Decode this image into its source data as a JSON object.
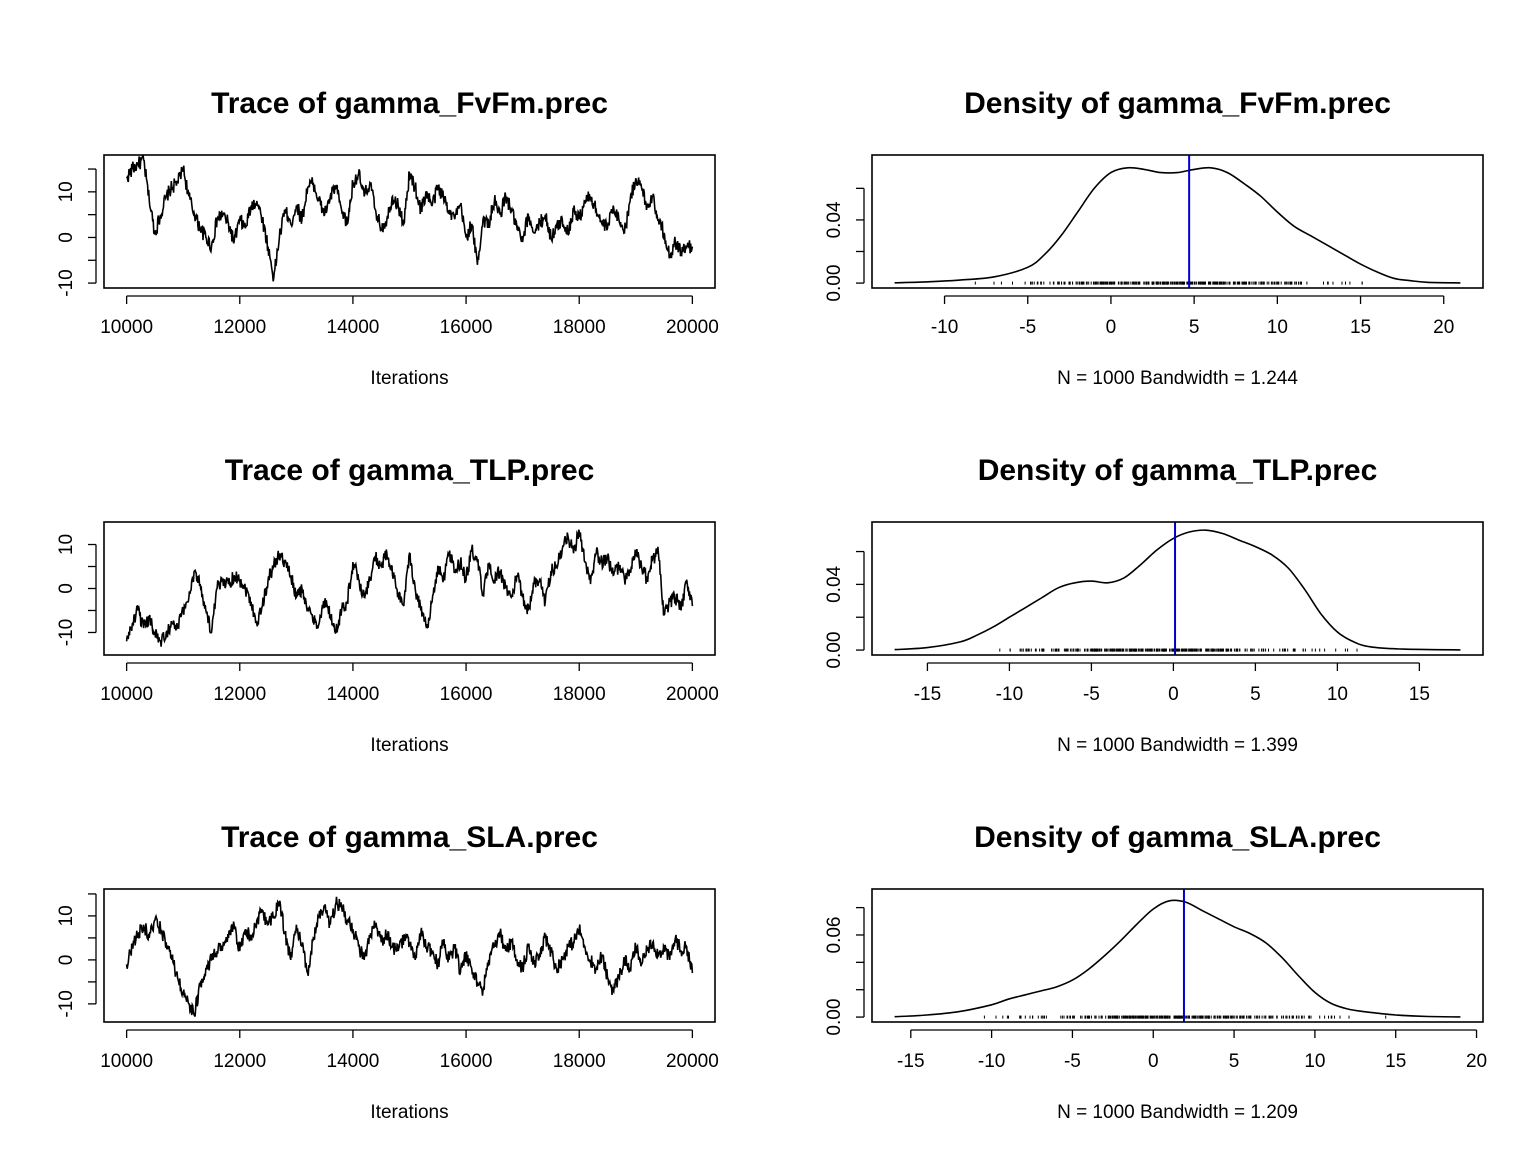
{
  "chart_data": [
    {
      "type": "line",
      "kind": "trace",
      "title": "Trace of gamma_FvFm.prec",
      "xlabel": "Iterations",
      "xlim": [
        10000,
        20000
      ],
      "ylim": [
        -10,
        17
      ],
      "xticks": [
        10000,
        12000,
        14000,
        16000,
        18000,
        20000
      ],
      "yticks": [
        -10,
        0,
        10
      ],
      "yminor": [
        -10,
        -5,
        0,
        5,
        10,
        15
      ],
      "x": [
        10000,
        10100,
        10200,
        10300,
        10400,
        10500,
        10600,
        10700,
        10800,
        10900,
        11000,
        11100,
        11200,
        11300,
        11400,
        11500,
        11600,
        11700,
        11800,
        11900,
        12000,
        12100,
        12200,
        12300,
        12400,
        12500,
        12600,
        12700,
        12800,
        12900,
        13000,
        13100,
        13200,
        13300,
        13400,
        13500,
        13600,
        13700,
        13800,
        13900,
        14000,
        14100,
        14200,
        14300,
        14400,
        14500,
        14600,
        14700,
        14800,
        14900,
        15000,
        15100,
        15200,
        15300,
        15400,
        15500,
        15600,
        15700,
        15800,
        15900,
        16000,
        16100,
        16200,
        16300,
        16400,
        16500,
        16600,
        16700,
        16800,
        16900,
        17000,
        17100,
        17200,
        17300,
        17400,
        17500,
        17600,
        17700,
        17800,
        17900,
        18000,
        18100,
        18200,
        18300,
        18400,
        18500,
        18600,
        18700,
        18800,
        18900,
        19000,
        19100,
        19200,
        19300,
        19400,
        19500,
        19600,
        19700,
        19800,
        19900,
        20000
      ],
      "y": [
        13,
        15,
        16,
        17,
        8,
        1,
        5,
        9,
        11,
        12,
        15,
        9,
        5,
        2,
        0,
        -2,
        4,
        5,
        3,
        -1,
        4,
        2,
        7,
        8,
        4,
        -2,
        -9,
        0,
        6,
        3,
        7,
        4,
        11,
        12,
        8,
        5,
        9,
        11,
        6,
        3,
        12,
        14,
        9,
        12,
        6,
        2,
        4,
        9,
        7,
        3,
        14,
        11,
        6,
        10,
        7,
        11,
        9,
        6,
        4,
        7,
        0,
        3,
        -6,
        4,
        3,
        8,
        5,
        9,
        6,
        2,
        -1,
        5,
        1,
        3,
        5,
        0,
        2,
        4,
        1,
        6,
        4,
        8,
        9,
        6,
        3,
        2,
        7,
        4,
        1,
        8,
        13,
        11,
        7,
        9,
        4,
        1,
        -4,
        -1,
        -3,
        -2,
        -2
      ]
    },
    {
      "type": "area",
      "kind": "density",
      "title": "Density of gamma_FvFm.prec",
      "xlabel": "N = 1000   Bandwidth = 1.244",
      "xlim": [
        -13,
        21
      ],
      "ylim": [
        0,
        0.078
      ],
      "xticks": [
        -10,
        -5,
        0,
        5,
        10,
        15,
        20
      ],
      "yticks": [
        0,
        0.04
      ],
      "ytick_labels": [
        "0.00",
        "0.04"
      ],
      "yminor": [
        0,
        0.02,
        0.04,
        0.06
      ],
      "mean_line": 4.7,
      "rug_range": [
        -9.5,
        17.5
      ],
      "x": [
        -13,
        -11,
        -9,
        -7,
        -5,
        -4,
        -3,
        -2,
        -1,
        0,
        1,
        2,
        3,
        4,
        5,
        6,
        7,
        8,
        9,
        10,
        11,
        12,
        13,
        14,
        15,
        16,
        17,
        18,
        19,
        21
      ],
      "y": [
        0.0002,
        0.0008,
        0.002,
        0.004,
        0.01,
        0.018,
        0.03,
        0.045,
        0.06,
        0.07,
        0.073,
        0.072,
        0.07,
        0.07,
        0.072,
        0.073,
        0.07,
        0.063,
        0.055,
        0.045,
        0.036,
        0.03,
        0.024,
        0.018,
        0.012,
        0.007,
        0.003,
        0.0015,
        0.0005,
        0.0001
      ]
    },
    {
      "type": "line",
      "kind": "trace",
      "title": "Trace of gamma_TLP.prec",
      "xlabel": "Iterations",
      "xlim": [
        10000,
        20000
      ],
      "ylim": [
        -14,
        14
      ],
      "xticks": [
        10000,
        12000,
        14000,
        16000,
        18000,
        20000
      ],
      "yticks": [
        -10,
        0,
        10
      ],
      "yminor": [
        -10,
        -5,
        0,
        5,
        10
      ],
      "x": [
        10000,
        10100,
        10200,
        10300,
        10400,
        10500,
        10600,
        10700,
        10800,
        10900,
        11000,
        11100,
        11200,
        11300,
        11400,
        11500,
        11600,
        11700,
        11800,
        11900,
        12000,
        12100,
        12200,
        12300,
        12400,
        12500,
        12600,
        12700,
        12800,
        12900,
        13000,
        13100,
        13200,
        13300,
        13400,
        13500,
        13600,
        13700,
        13800,
        13900,
        14000,
        14100,
        14200,
        14300,
        14400,
        14500,
        14600,
        14700,
        14800,
        14900,
        15000,
        15100,
        15200,
        15300,
        15400,
        15500,
        15600,
        15700,
        15800,
        15900,
        16000,
        16100,
        16200,
        16300,
        16400,
        16500,
        16600,
        16700,
        16800,
        16900,
        17000,
        17100,
        17200,
        17300,
        17400,
        17500,
        17600,
        17700,
        17800,
        17900,
        18000,
        18100,
        18200,
        18300,
        18400,
        18500,
        18600,
        18700,
        18800,
        18900,
        19000,
        19100,
        19200,
        19300,
        19400,
        19500,
        19600,
        19700,
        19800,
        19900,
        20000
      ],
      "y": [
        -12,
        -8,
        -5,
        -9,
        -7,
        -10,
        -12,
        -10,
        -8,
        -9,
        -5,
        -2,
        4,
        1,
        -5,
        -10,
        0,
        2,
        1,
        3,
        2,
        0,
        -3,
        -8,
        -4,
        2,
        5,
        8,
        6,
        3,
        -2,
        0,
        -5,
        -7,
        -8,
        -3,
        -6,
        -10,
        -5,
        -3,
        6,
        2,
        -2,
        2,
        7,
        5,
        8,
        3,
        -1,
        -4,
        8,
        0,
        -5,
        -9,
        -3,
        5,
        2,
        8,
        4,
        6,
        2,
        9,
        6,
        -1,
        5,
        2,
        4,
        0,
        -2,
        3,
        -2,
        -5,
        1,
        2,
        -3,
        4,
        5,
        9,
        12,
        8,
        13,
        6,
        1,
        8,
        6,
        7,
        3,
        5,
        2,
        4,
        8,
        5,
        2,
        7,
        8,
        -6,
        -3,
        -2,
        -5,
        2,
        -4
      ]
    },
    {
      "type": "area",
      "kind": "density",
      "title": "Density of gamma_TLP.prec",
      "xlabel": "N = 1000   Bandwidth = 1.399",
      "xlim": [
        -17,
        17.5
      ],
      "ylim": [
        0,
        0.075
      ],
      "xticks": [
        -15,
        -10,
        -5,
        0,
        5,
        10,
        15
      ],
      "yticks": [
        0,
        0.04
      ],
      "ytick_labels": [
        "0.00",
        "0.04"
      ],
      "yminor": [
        0,
        0.02,
        0.04,
        0.06
      ],
      "mean_line": 0.1,
      "rug_range": [
        -13,
        12
      ],
      "x": [
        -17,
        -15,
        -13,
        -12,
        -11,
        -10,
        -9,
        -8,
        -7,
        -6,
        -5,
        -4,
        -3,
        -2,
        -1,
        0,
        1,
        2,
        3,
        4,
        5,
        6,
        7,
        8,
        9,
        10,
        11,
        12,
        14,
        17.5
      ],
      "y": [
        0.0003,
        0.0015,
        0.005,
        0.009,
        0.014,
        0.02,
        0.026,
        0.032,
        0.038,
        0.041,
        0.042,
        0.041,
        0.044,
        0.052,
        0.061,
        0.068,
        0.072,
        0.073,
        0.071,
        0.067,
        0.063,
        0.058,
        0.05,
        0.037,
        0.022,
        0.011,
        0.005,
        0.002,
        0.0006,
        0.0001
      ]
    },
    {
      "type": "line",
      "kind": "trace",
      "title": "Trace of gamma_SLA.prec",
      "xlabel": "Iterations",
      "xlim": [
        10000,
        20000
      ],
      "ylim": [
        -13,
        15
      ],
      "xticks": [
        10000,
        12000,
        14000,
        16000,
        18000,
        20000
      ],
      "yticks": [
        -10,
        0,
        10
      ],
      "yminor": [
        -10,
        -5,
        0,
        5,
        10,
        15
      ],
      "x": [
        10000,
        10100,
        10200,
        10300,
        10400,
        10500,
        10600,
        10700,
        10800,
        10900,
        11000,
        11100,
        11200,
        11300,
        11400,
        11500,
        11600,
        11700,
        11800,
        11900,
        12000,
        12100,
        12200,
        12300,
        12400,
        12500,
        12600,
        12700,
        12800,
        12900,
        13000,
        13100,
        13200,
        13300,
        13400,
        13500,
        13600,
        13700,
        13800,
        13900,
        14000,
        14100,
        14200,
        14300,
        14400,
        14500,
        14600,
        14700,
        14800,
        14900,
        15000,
        15100,
        15200,
        15300,
        15400,
        15500,
        15600,
        15700,
        15800,
        15900,
        16000,
        16100,
        16200,
        16300,
        16400,
        16500,
        16600,
        16700,
        16800,
        16900,
        17000,
        17100,
        17200,
        17300,
        17400,
        17500,
        17600,
        17700,
        17800,
        17900,
        18000,
        18100,
        18200,
        18300,
        18400,
        18500,
        18600,
        18700,
        18800,
        18900,
        19000,
        19100,
        19200,
        19300,
        19400,
        19500,
        19600,
        19700,
        19800,
        19900,
        20000
      ],
      "y": [
        -1,
        3,
        6,
        8,
        5,
        9,
        7,
        4,
        0,
        -4,
        -8,
        -10,
        -12,
        -6,
        -2,
        0,
        2,
        3,
        5,
        8,
        2,
        7,
        5,
        9,
        11,
        8,
        10,
        13,
        6,
        0,
        8,
        3,
        -3,
        5,
        10,
        12,
        8,
        13,
        12,
        9,
        7,
        3,
        0,
        5,
        8,
        4,
        6,
        3,
        2,
        5,
        4,
        0,
        6,
        3,
        2,
        -1,
        4,
        0,
        3,
        -3,
        1,
        -2,
        -5,
        -7,
        0,
        3,
        6,
        2,
        4,
        0,
        -2,
        3,
        -1,
        1,
        5,
        2,
        -2,
        0,
        3,
        4,
        7,
        3,
        0,
        -2,
        1,
        -4,
        -7,
        -4,
        0,
        -2,
        3,
        -1,
        2,
        4,
        1,
        3,
        0,
        5,
        2,
        3,
        -3
      ]
    },
    {
      "type": "area",
      "kind": "density",
      "title": "Density of gamma_SLA.prec",
      "xlabel": "N = 1000   Bandwidth = 1.209",
      "xlim": [
        -16,
        19
      ],
      "ylim": [
        0,
        0.09
      ],
      "xticks": [
        -15,
        -10,
        -5,
        0,
        5,
        10,
        15,
        20
      ],
      "yticks": [
        0,
        0.06
      ],
      "ytick_labels": [
        "0.00",
        "0.06"
      ],
      "yminor": [
        0,
        0.02,
        0.04,
        0.06,
        0.08
      ],
      "mean_line": 1.9,
      "rug_range": [
        -12.5,
        15
      ],
      "x": [
        -16,
        -14,
        -12,
        -10,
        -9,
        -8,
        -7,
        -6,
        -5,
        -4,
        -3,
        -2,
        -1,
        0,
        1,
        2,
        3,
        4,
        5,
        6,
        7,
        8,
        9,
        10,
        11,
        12,
        13,
        15,
        17,
        19
      ],
      "y": [
        0.0003,
        0.0015,
        0.004,
        0.009,
        0.013,
        0.016,
        0.019,
        0.022,
        0.027,
        0.035,
        0.045,
        0.056,
        0.068,
        0.079,
        0.085,
        0.084,
        0.078,
        0.072,
        0.066,
        0.061,
        0.054,
        0.043,
        0.03,
        0.018,
        0.01,
        0.006,
        0.004,
        0.0015,
        0.0004,
        0.0001
      ]
    }
  ]
}
